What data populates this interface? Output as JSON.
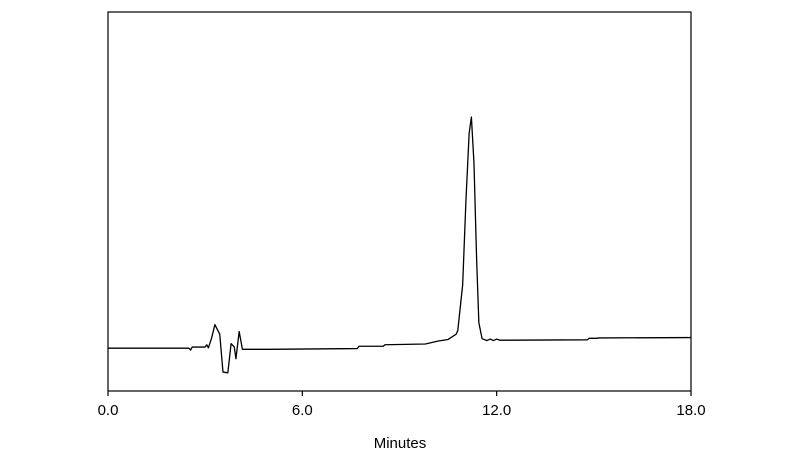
{
  "chart_data": {
    "type": "line",
    "xlabel": "Minutes",
    "color": "#000000",
    "x": [
      0,
      2.5,
      2.55,
      2.6,
      3.0,
      3.05,
      3.1,
      3.2,
      3.3,
      3.45,
      3.55,
      3.7,
      3.8,
      3.9,
      3.95,
      4.05,
      4.15,
      5.0,
      7.7,
      7.75,
      8.5,
      8.55,
      9.8,
      10.2,
      10.5,
      10.75,
      10.8,
      10.95,
      11.05,
      11.15,
      11.22,
      11.3,
      11.38,
      11.45,
      11.55,
      11.7,
      11.8,
      11.9,
      12.0,
      12.1,
      14.8,
      14.85,
      15.1,
      15.15,
      18.0
    ],
    "values": [
      11.3,
      11.3,
      10.8,
      11.6,
      11.6,
      12.2,
      11.4,
      14,
      17.5,
      15,
      5,
      4.8,
      12.5,
      11.6,
      8.5,
      15.7,
      11.0,
      11.0,
      11.2,
      11.8,
      11.8,
      12.2,
      12.4,
      13.2,
      13.6,
      15,
      16,
      28,
      50,
      68,
      72.3,
      60,
      35,
      18,
      13.8,
      13.3,
      13.7,
      13.3,
      13.7,
      13.4,
      13.5,
      13.9,
      13.9,
      14,
      14.1
    ],
    "xlim": [
      0,
      18
    ],
    "xticks": [
      {
        "value": 0,
        "label": "0.0"
      },
      {
        "value": 6,
        "label": "6.0"
      },
      {
        "value": 12,
        "label": "12.0"
      },
      {
        "value": 18,
        "label": "18.0"
      }
    ],
    "ylim": [
      0,
      100
    ]
  }
}
